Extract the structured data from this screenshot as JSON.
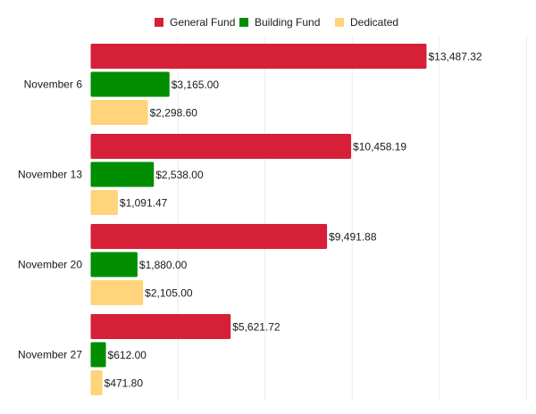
{
  "chart_data": {
    "type": "bar",
    "orientation": "horizontal",
    "title": "",
    "xlabel": "",
    "ylabel": "",
    "categories": [
      "November 6",
      "November 13",
      "November 20",
      "November 27"
    ],
    "series": [
      {
        "name": "General Fund",
        "color": "#d62037",
        "values": [
          13487.32,
          10458.19,
          9491.88,
          5621.72
        ],
        "labels": [
          "$13,487.32",
          "$10,458.19",
          "$9,491.88",
          "$5,621.72"
        ]
      },
      {
        "name": "Building Fund",
        "color": "#008e00",
        "values": [
          3165.0,
          2538.0,
          1880.0,
          612.0
        ],
        "labels": [
          "$3,165.00",
          "$2,538.00",
          "$1,880.00",
          "$612.00"
        ]
      },
      {
        "name": "Dedicated",
        "color": "#ffd47a",
        "values": [
          2298.6,
          1091.47,
          2105.0,
          471.8
        ],
        "labels": [
          "$2,298.60",
          "$1,091.47",
          "$2,105.00",
          "$471.80"
        ]
      }
    ],
    "xlim": [
      0,
      17500
    ],
    "grid_step": 3500,
    "grid": true,
    "legend": "top-center"
  }
}
